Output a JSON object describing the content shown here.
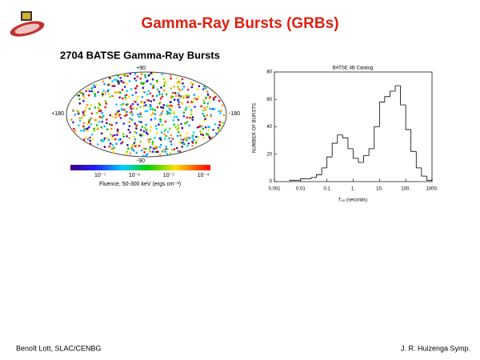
{
  "header": {
    "title": "Gamma-Ray Bursts (GRBs)"
  },
  "sky_map": {
    "title": "2704 BATSE Gamma-Ray Bursts",
    "lat_top": "+90",
    "lat_bottom": "-90",
    "lon_left": "+180",
    "lon_right": "-180",
    "colorbar_ticks": [
      "10⁻⁷",
      "10⁻⁶",
      "10⁻⁵",
      "10⁻⁴"
    ],
    "colorbar_label": "Fluence, 50-300 keV (ergs cm⁻²)"
  },
  "chart_data": {
    "type": "histogram",
    "title": "BATSE 4B Catalog",
    "xlabel": "T₉₀ (seconds)",
    "ylabel": "NUMBER OF BURSTS",
    "log_x": true,
    "color": "#000000",
    "bins": [
      0.00398,
      0.00631,
      0.01,
      0.0158,
      0.0251,
      0.0398,
      0.0631,
      0.1,
      0.158,
      0.251,
      0.398,
      0.631,
      1,
      1.58,
      2.51,
      3.98,
      6.31,
      10,
      15.8,
      25.1,
      39.8,
      63.1,
      100,
      158,
      251,
      398,
      631,
      1000
    ],
    "counts": [
      1,
      1,
      2,
      2,
      3,
      5,
      10,
      18,
      28,
      34,
      32,
      24,
      17,
      14,
      19,
      24,
      40,
      58,
      62,
      66,
      70,
      56,
      38,
      22,
      10,
      4,
      1
    ],
    "xlim": [
      0.001,
      1000
    ],
    "xticks": [
      0.001,
      0.01,
      0.1,
      {
        "value": 1,
        "label": "1."
      },
      {
        "value": 10,
        "label": "10."
      },
      {
        "value": 100,
        "label": "100."
      },
      {
        "value": 1000,
        "label": "1000."
      }
    ],
    "ylim": [
      0,
      80
    ],
    "yticks": [
      0,
      20,
      40,
      60,
      80
    ]
  },
  "footer": {
    "left": "Benoît Lott, SLAC/CENBG",
    "right": "J. R. Huizenga Symp."
  }
}
